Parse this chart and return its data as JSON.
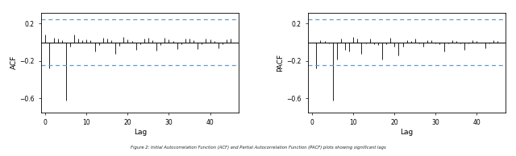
{
  "acf_values": [
    0.08,
    -0.28,
    0.05,
    0.04,
    0.02,
    -0.62,
    -0.05,
    0.08,
    0.04,
    0.02,
    0.03,
    0.02,
    -0.1,
    -0.03,
    0.05,
    0.04,
    0.02,
    -0.12,
    -0.04,
    0.06,
    0.03,
    0.01,
    -0.08,
    -0.02,
    0.04,
    0.05,
    0.02,
    -0.09,
    -0.03,
    0.05,
    0.03,
    0.01,
    -0.07,
    -0.02,
    0.04,
    0.04,
    0.02,
    -0.07,
    -0.02,
    0.04,
    0.03,
    0.01,
    -0.06,
    -0.02,
    0.03,
    0.04
  ],
  "pacf_values": [
    -0.28,
    0.02,
    0.01,
    -0.01,
    -0.62,
    -0.18,
    0.04,
    -0.08,
    -0.1,
    0.06,
    0.04,
    -0.12,
    -0.01,
    0.04,
    -0.02,
    -0.03,
    -0.18,
    -0.02,
    0.05,
    -0.05,
    -0.14,
    -0.05,
    0.02,
    0.01,
    0.04,
    -0.01,
    -0.05,
    0.02,
    0.02,
    -0.01,
    -0.02,
    -0.1,
    -0.01,
    0.02,
    0.01,
    -0.01,
    -0.08,
    -0.01,
    0.02,
    0.01,
    0.0,
    -0.06,
    -0.01,
    0.02,
    0.01
  ],
  "ci": 0.245,
  "ci_color": "#6699CC",
  "bar_color": "#000000",
  "background_color": "#ffffff",
  "panel_color": "#ffffff",
  "ylabel_acf": "ACF",
  "ylabel_pacf": "PACF",
  "xlabel": "Lag",
  "ylim": [
    -0.75,
    0.32
  ],
  "yticks": [
    -0.6,
    -0.2,
    0.2
  ],
  "xticks": [
    0,
    10,
    20,
    30,
    40
  ],
  "xlim": [
    -1,
    47
  ],
  "figsize": [
    6.4,
    1.94
  ],
  "dpi": 100,
  "caption": "Figure 2: Initial Autocorrelation Function (ACF) and Partial Autocorrelation Function (PACF) plots showing significant lags"
}
